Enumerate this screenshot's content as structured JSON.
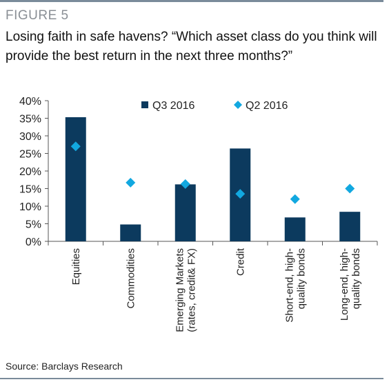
{
  "figure": {
    "label": "FIGURE 5",
    "title": "Losing faith in safe havens? “Which asset class do you think will provide the best return in the next three months?”",
    "source": "Source: Barclays Research"
  },
  "colors": {
    "q3": "#0c3a5e",
    "q2": "#12a8e0",
    "axis": "#555555"
  },
  "chart_data": {
    "type": "bar",
    "title": "",
    "xlabel": "",
    "ylabel": "",
    "ylim": [
      0,
      40
    ],
    "y_ticks": [
      "0%",
      "5%",
      "10%",
      "15%",
      "20%",
      "25%",
      "30%",
      "35%",
      "40%"
    ],
    "y_tick_values": [
      0,
      5,
      10,
      15,
      20,
      25,
      30,
      35,
      40
    ],
    "legend_placement": "top",
    "categories": [
      [
        "Equities"
      ],
      [
        "Commodities"
      ],
      [
        "Emerging Markets",
        "(rates, credit& FX)"
      ],
      [
        "Credit"
      ],
      [
        "Short-end, high-",
        "quality bonds"
      ],
      [
        "Long-end, high-",
        "quality bonds"
      ]
    ],
    "series": [
      {
        "name": "Q3 2016",
        "type": "bar",
        "values": [
          35.3,
          4.8,
          16.2,
          26.4,
          6.8,
          8.4
        ]
      },
      {
        "name": "Q2 2016",
        "type": "marker",
        "values": [
          27.0,
          16.7,
          16.3,
          13.5,
          12.0,
          15.0
        ]
      }
    ]
  }
}
